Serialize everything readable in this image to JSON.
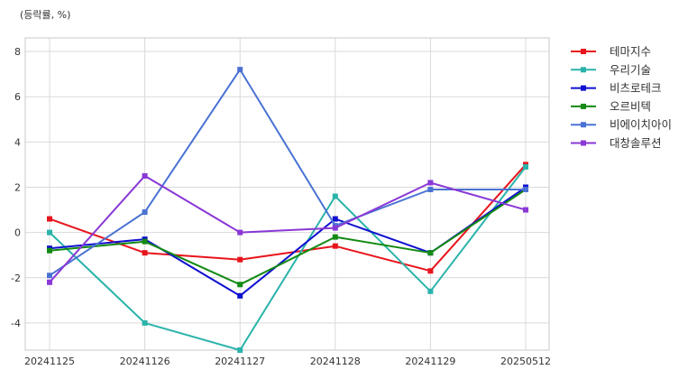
{
  "chart_data": {
    "type": "line",
    "title": "",
    "unit_label": "(등락률, %)",
    "xlabel": "",
    "ylabel": "",
    "categories": [
      "20241125",
      "20241126",
      "20241127",
      "20241128",
      "20241129",
      "20250512"
    ],
    "ylim": [
      -5.2,
      8.6
    ],
    "yticks": [
      -4,
      -2,
      0,
      2,
      4,
      6,
      8
    ],
    "grid": true,
    "legend_position": "right-top outside",
    "marker": "square",
    "series": [
      {
        "name": "테마지수",
        "color": "#e8141c",
        "values": [
          0.6,
          -0.9,
          -1.2,
          -0.6,
          -1.7,
          3.0
        ]
      },
      {
        "name": "우리기술",
        "color": "#2ab3aa",
        "values": [
          0.0,
          -4.0,
          -5.2,
          1.6,
          -2.6,
          2.9
        ]
      },
      {
        "name": "비츠로테크",
        "color": "#1010d0",
        "values": [
          -0.7,
          -0.3,
          -2.8,
          0.6,
          -0.9,
          2.0
        ]
      },
      {
        "name": "오르비텍",
        "color": "#138a13",
        "values": [
          -0.8,
          -0.4,
          -2.3,
          -0.2,
          -0.9,
          1.9
        ]
      },
      {
        "name": "비에이치아이",
        "color": "#4a72d4",
        "values": [
          -1.9,
          0.9,
          7.2,
          0.3,
          1.9,
          1.9
        ]
      },
      {
        "name": "대창솔루션",
        "color": "#8a38d6",
        "values": [
          -2.2,
          2.5,
          0.0,
          0.2,
          2.2,
          1.0
        ]
      }
    ]
  }
}
